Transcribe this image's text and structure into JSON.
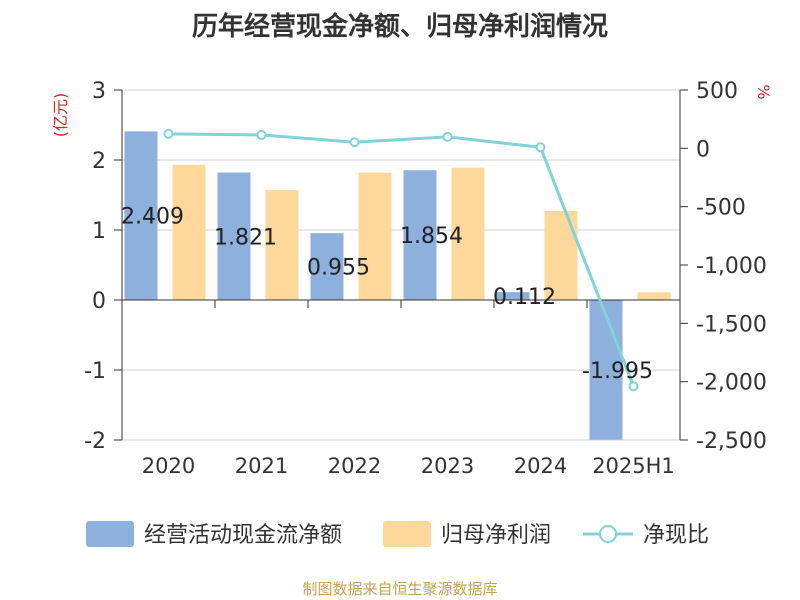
{
  "title": "历年经营现金净额、归母净利润情况",
  "source": "制图数据来自恒生聚源数据库",
  "colors": {
    "cash": "#8eb0dc",
    "profit": "#fdd89a",
    "ratio": "#7fd3d9",
    "unit": "#e02020",
    "axis": "#333333",
    "grid": "#d0d0d0"
  },
  "chart_data": {
    "type": "bar",
    "title": "历年经营现金净额、归母净利润情况",
    "categories": [
      "2020",
      "2021",
      "2022",
      "2023",
      "2024",
      "2025H1"
    ],
    "left_axis": {
      "label": "(亿元)",
      "ylim": [
        -2,
        3
      ],
      "ticks": [
        "-2",
        "-1",
        "0",
        "1",
        "2",
        "3"
      ]
    },
    "right_axis": {
      "label": "%",
      "ylim": [
        -2500,
        500
      ],
      "ticks": [
        "500",
        "0",
        "-500",
        "-1,000",
        "-1,500",
        "-2,000",
        "-2,500"
      ]
    },
    "series": [
      {
        "name": "经营活动现金流净额",
        "type": "bar",
        "axis": "left",
        "values": [
          2.409,
          1.821,
          0.955,
          1.854,
          0.112,
          -1.995
        ],
        "labels": [
          "2.409",
          "1.821",
          "0.955",
          "1.854",
          "0.112",
          "-1.995"
        ]
      },
      {
        "name": "归母净利润",
        "type": "bar",
        "axis": "left",
        "values": [
          1.93,
          1.57,
          1.82,
          1.89,
          1.27,
          0.11
        ]
      },
      {
        "name": "净现比",
        "type": "line",
        "axis": "right",
        "values": [
          124,
          115,
          52,
          98,
          9,
          -2040
        ]
      }
    ],
    "legend_position": "bottom",
    "grid": true
  }
}
